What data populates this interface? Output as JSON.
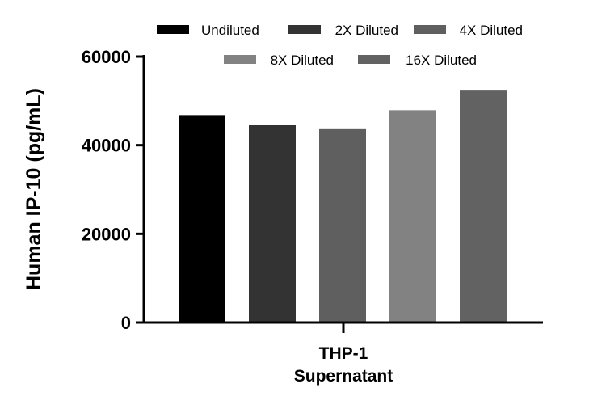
{
  "chart_data": {
    "type": "bar",
    "ylabel": "Human IP-10 (pg/mL)",
    "category_line1": "THP-1",
    "category_line2": "Supernatant",
    "ylim": [
      0,
      60000
    ],
    "yticks": [
      "0",
      "20000",
      "40000",
      "60000"
    ],
    "legend_position": "top",
    "grid": false,
    "series": [
      {
        "name": "Undiluted",
        "value": 46800,
        "color": "#000000"
      },
      {
        "name": "2X Diluted",
        "value": 44500,
        "color": "#333333"
      },
      {
        "name": "4X Diluted",
        "value": 43800,
        "color": "#5f5f5f"
      },
      {
        "name": "8X Diluted",
        "value": 47900,
        "color": "#828282"
      },
      {
        "name": "16X Diluted",
        "value": 52500,
        "color": "#626262"
      }
    ]
  }
}
